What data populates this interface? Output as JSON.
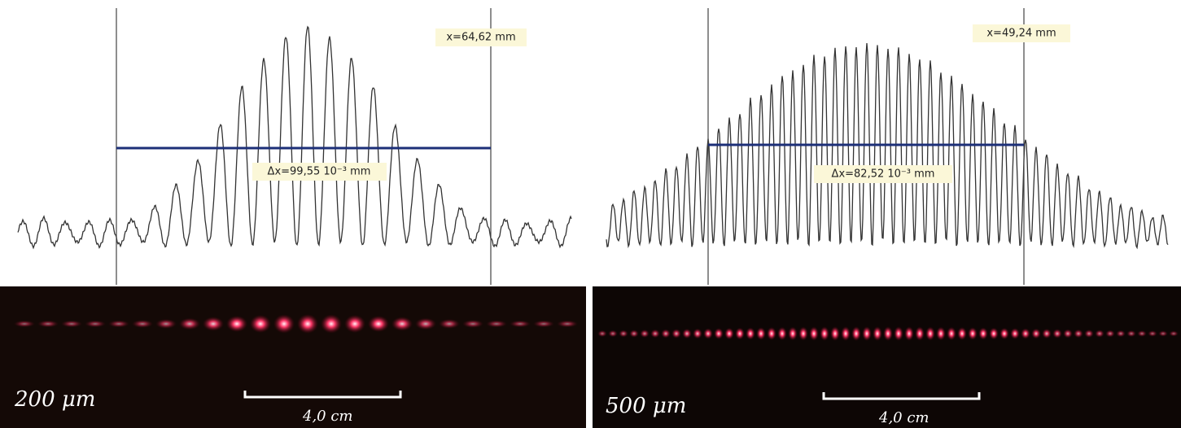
{
  "panels": [
    {
      "position_label": "x=64,62 mm",
      "spacing_label": "Δx=99,55 10⁻³ mm",
      "slit_label": "200 μm",
      "scale_label": "4,0 cm"
    },
    {
      "position_label": "x=49,24 mm",
      "spacing_label": "Δx=82,52 10⁻³ mm",
      "slit_label": "500 μm",
      "scale_label": "4,0 cm"
    }
  ]
}
